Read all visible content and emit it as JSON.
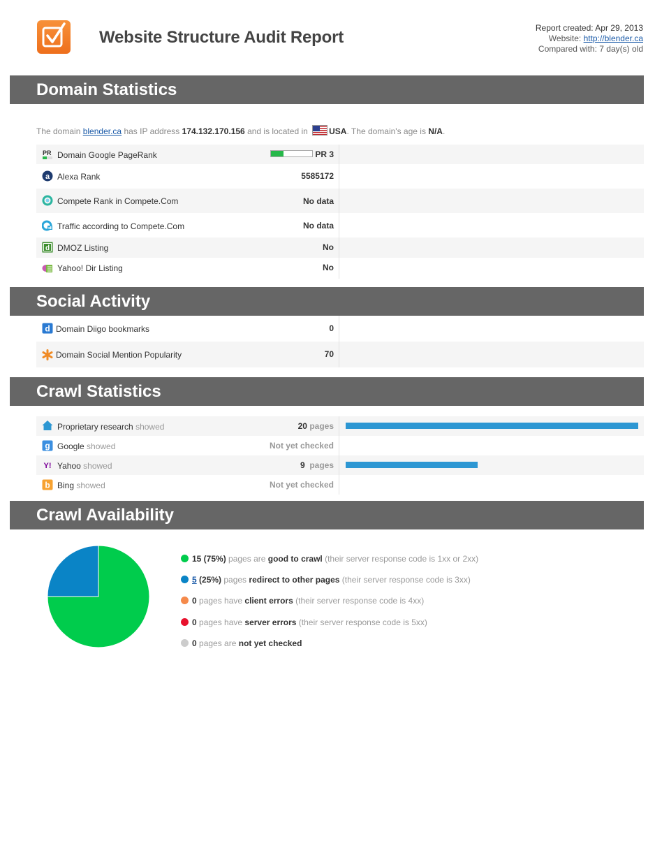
{
  "header": {
    "title": "Website Structure Audit Report",
    "report_created_label": "Report created:",
    "report_created": "Apr 29, 2013",
    "website_label": "Website:",
    "website": "http://blender.ca",
    "compared_label": "Compared with:",
    "compared": "7 day(s) old"
  },
  "sections": {
    "domain": "Domain Statistics",
    "social": "Social Activity",
    "crawl": "Crawl Statistics",
    "availability": "Crawl Availability"
  },
  "domain_intro": {
    "t1": "The domain",
    "domain": "blender.ca",
    "t2": "has IP address",
    "ip": "174.132.170.156",
    "t3": "and is located in",
    "country": "USA",
    "t4": ".  The domain's age is",
    "age": "N/A",
    "t5": "."
  },
  "domain_rows": [
    {
      "icon": "pagerank-icon",
      "label": "Domain Google PageRank",
      "value": "PR 3",
      "pagerank": 3,
      "pagerank_max": 10
    },
    {
      "icon": "alexa-icon",
      "label": "Alexa Rank",
      "value": "5585172"
    },
    {
      "icon": "compete-icon",
      "label": "Compete Rank in Compete.Com",
      "value": "No data"
    },
    {
      "icon": "compete-traffic-icon",
      "label": "Traffic according to Compete.Com",
      "value": "No data"
    },
    {
      "icon": "dmoz-icon",
      "label": "DMOZ Listing",
      "value": "No"
    },
    {
      "icon": "yahoo-dir-icon",
      "label": "Yahoo! Dir Listing",
      "value": "No"
    }
  ],
  "social_rows": [
    {
      "icon": "diigo-icon",
      "label": "Domain Diigo bookmarks",
      "value": "0"
    },
    {
      "icon": "social-mention-icon",
      "label": "Domain Social Mention Popularity",
      "value": "70"
    }
  ],
  "crawl_rows": [
    {
      "icon": "home-icon",
      "label": "Proprietary research",
      "suffix": "showed",
      "value": "20",
      "unit": "pages",
      "pages": 20
    },
    {
      "icon": "google-icon",
      "label": "Google",
      "suffix": "showed",
      "value": "Not yet checked"
    },
    {
      "icon": "yahoo-icon",
      "label": "Yahoo",
      "suffix": "showed",
      "value": "9",
      "unit": "pages",
      "pages": 9
    },
    {
      "icon": "bing-icon",
      "label": "Bing",
      "suffix": "showed",
      "value": "Not yet checked"
    }
  ],
  "crawl_max_pages": 20,
  "chart_data": {
    "type": "pie",
    "title": "",
    "slices": [
      {
        "name": "good to crawl",
        "value": 15,
        "percent": 75,
        "color": "#00cc4c"
      },
      {
        "name": "redirect to other pages",
        "value": 5,
        "percent": 25,
        "color": "#0a84c6"
      },
      {
        "name": "client errors",
        "value": 0,
        "percent": 0,
        "color": "#f58a4b"
      },
      {
        "name": "server errors",
        "value": 0,
        "percent": 0,
        "color": "#e8112d"
      },
      {
        "name": "not yet checked",
        "value": 0,
        "percent": 0,
        "color": "#cccccc"
      }
    ]
  },
  "legend": [
    {
      "color": "#00cc4c",
      "count": "15 (75%)",
      "t1": " pages are ",
      "strong": "good to crawl",
      "t2": " (their server response code is 1xx or 2xx)"
    },
    {
      "color": "#0a84c6",
      "count_link": "5",
      "count": " (25%)",
      "t1": " pages ",
      "strong": "redirect to other pages",
      "t2": " (their server response code is 3xx)"
    },
    {
      "color": "#f58a4b",
      "count": "0",
      "t1": " pages have ",
      "strong": "client errors",
      "t2": " (their server response code is 4xx)"
    },
    {
      "color": "#e8112d",
      "count": "0",
      "t1": " pages have ",
      "strong": "server errors",
      "t2": " (their server response code is 5xx)"
    },
    {
      "color": "#cccccc",
      "count": "0",
      "t1": " pages are ",
      "strong": "not yet checked",
      "t2": ""
    }
  ]
}
